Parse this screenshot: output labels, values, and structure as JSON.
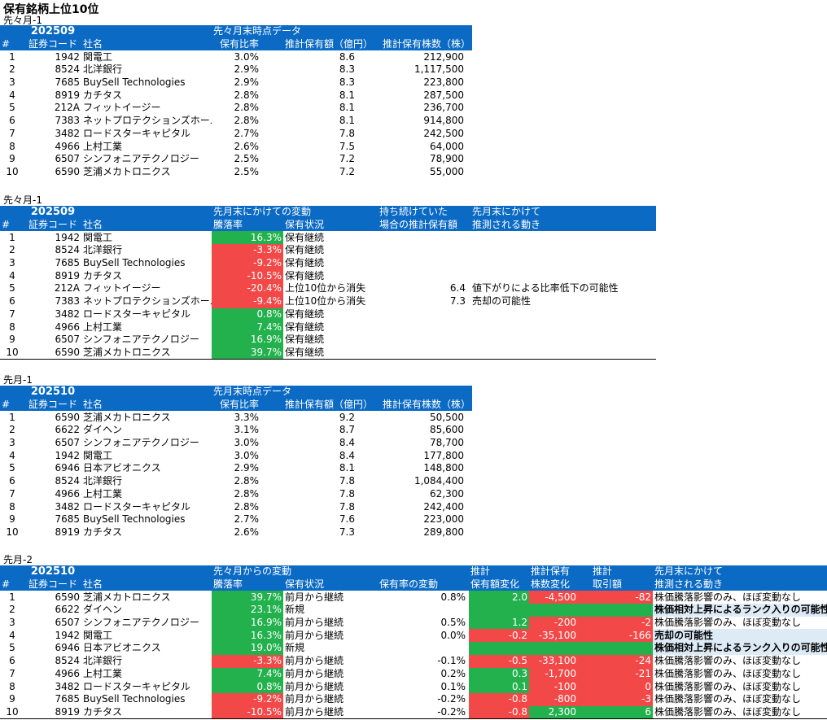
{
  "title": "保有銘柄上位10位",
  "colors": {
    "header_bg": "#0B6AC4",
    "up": "#22B14C",
    "down": "#F24848",
    "note_bg": "#DDEBF7"
  },
  "section1": {
    "label": "先々月-1",
    "period": "202509",
    "group": "先々月末時点データ",
    "headers": {
      "num": "#",
      "code": "証券コード",
      "name": "社名",
      "ratio": "保有比率",
      "amount": "推計保有額（億円）",
      "shares": "推計保有株数（株）"
    },
    "rows": [
      {
        "n": "1",
        "code": "1942",
        "name": "関電工",
        "ratio": "3.0%",
        "amount": "8.6",
        "shares": "212,900"
      },
      {
        "n": "2",
        "code": "8524",
        "name": "北洋銀行",
        "ratio": "2.9%",
        "amount": "8.3",
        "shares": "1,117,500"
      },
      {
        "n": "3",
        "code": "7685",
        "name": "BuySell Technologies",
        "ratio": "2.9%",
        "amount": "8.3",
        "shares": "223,800"
      },
      {
        "n": "4",
        "code": "8919",
        "name": "カチタス",
        "ratio": "2.8%",
        "amount": "8.1",
        "shares": "287,500"
      },
      {
        "n": "5",
        "code": "212A",
        "name": "フィットイージー",
        "ratio": "2.8%",
        "amount": "8.1",
        "shares": "236,700"
      },
      {
        "n": "6",
        "code": "7383",
        "name": "ネットプロテクションズホールディ",
        "ratio": "2.8%",
        "amount": "8.1",
        "shares": "914,800"
      },
      {
        "n": "7",
        "code": "3482",
        "name": "ロードスターキャピタル",
        "ratio": "2.7%",
        "amount": "7.8",
        "shares": "242,500"
      },
      {
        "n": "8",
        "code": "4966",
        "name": "上村工業",
        "ratio": "2.6%",
        "amount": "7.5",
        "shares": "64,000"
      },
      {
        "n": "9",
        "code": "6507",
        "name": "シンフォニアテクノロジー",
        "ratio": "2.5%",
        "amount": "7.2",
        "shares": "78,900"
      },
      {
        "n": "10",
        "code": "6590",
        "name": "芝浦メカトロニクス",
        "ratio": "2.5%",
        "amount": "7.2",
        "shares": "55,000"
      }
    ]
  },
  "section2": {
    "label": "先々月-1",
    "period": "202509",
    "group": "先月末にかけての変動",
    "group2": "持ち続けていた",
    "group3": "先月末にかけて",
    "headers": {
      "num": "#",
      "code": "証券コード",
      "name": "社名",
      "rate": "騰落率",
      "status": "保有状況",
      "est": "場合の推計保有額",
      "move": "推測される動き"
    },
    "rows": [
      {
        "n": "1",
        "code": "1942",
        "name": "関電工",
        "rate": "16.3%",
        "dir": "up",
        "status": "保有継続",
        "est": "",
        "move": ""
      },
      {
        "n": "2",
        "code": "8524",
        "name": "北洋銀行",
        "rate": "-3.3%",
        "dir": "down",
        "status": "保有継続",
        "est": "",
        "move": ""
      },
      {
        "n": "3",
        "code": "7685",
        "name": "BuySell Technologies",
        "rate": "-9.2%",
        "dir": "down",
        "status": "保有継続",
        "est": "",
        "move": ""
      },
      {
        "n": "4",
        "code": "8919",
        "name": "カチタス",
        "rate": "-10.5%",
        "dir": "down",
        "status": "保有継続",
        "est": "",
        "move": ""
      },
      {
        "n": "5",
        "code": "212A",
        "name": "フィットイージー",
        "rate": "-20.4%",
        "dir": "down",
        "status": "上位10位から消失",
        "est": "6.4",
        "move": "値下がりによる比率低下の可能性"
      },
      {
        "n": "6",
        "code": "7383",
        "name": "ネットプロテクションズホールディ",
        "rate": "-9.4%",
        "dir": "down",
        "status": "上位10位から消失",
        "est": "7.3",
        "move": "売却の可能性"
      },
      {
        "n": "7",
        "code": "3482",
        "name": "ロードスターキャピタル",
        "rate": "0.8%",
        "dir": "up",
        "status": "保有継続",
        "est": "",
        "move": ""
      },
      {
        "n": "8",
        "code": "4966",
        "name": "上村工業",
        "rate": "7.4%",
        "dir": "up",
        "status": "保有継続",
        "est": "",
        "move": ""
      },
      {
        "n": "9",
        "code": "6507",
        "name": "シンフォニアテクノロジー",
        "rate": "16.9%",
        "dir": "up",
        "status": "保有継続",
        "est": "",
        "move": ""
      },
      {
        "n": "10",
        "code": "6590",
        "name": "芝浦メカトロニクス",
        "rate": "39.7%",
        "dir": "up",
        "status": "保有継続",
        "est": "",
        "move": ""
      }
    ]
  },
  "section3": {
    "label": "先月-1",
    "period": "202510",
    "group": "先月末時点データ",
    "headers": {
      "num": "#",
      "code": "証券コード",
      "name": "社名",
      "ratio": "保有比率",
      "amount": "推計保有額（億円）",
      "shares": "推計保有株数（株）"
    },
    "rows": [
      {
        "n": "1",
        "code": "6590",
        "name": "芝浦メカトロニクス",
        "ratio": "3.3%",
        "amount": "9.2",
        "shares": "50,500"
      },
      {
        "n": "2",
        "code": "6622",
        "name": "ダイヘン",
        "ratio": "3.1%",
        "amount": "8.7",
        "shares": "85,600"
      },
      {
        "n": "3",
        "code": "6507",
        "name": "シンフォニアテクノロジー",
        "ratio": "3.0%",
        "amount": "8.4",
        "shares": "78,700"
      },
      {
        "n": "4",
        "code": "1942",
        "name": "関電工",
        "ratio": "3.0%",
        "amount": "8.4",
        "shares": "177,800"
      },
      {
        "n": "5",
        "code": "6946",
        "name": "日本アビオニクス",
        "ratio": "2.9%",
        "amount": "8.1",
        "shares": "148,800"
      },
      {
        "n": "6",
        "code": "8524",
        "name": "北洋銀行",
        "ratio": "2.8%",
        "amount": "7.8",
        "shares": "1,084,400"
      },
      {
        "n": "7",
        "code": "4966",
        "name": "上村工業",
        "ratio": "2.8%",
        "amount": "7.8",
        "shares": "62,300"
      },
      {
        "n": "8",
        "code": "3482",
        "name": "ロードスターキャピタル",
        "ratio": "2.8%",
        "amount": "7.8",
        "shares": "242,400"
      },
      {
        "n": "9",
        "code": "7685",
        "name": "BuySell Technologies",
        "ratio": "2.7%",
        "amount": "7.6",
        "shares": "223,000"
      },
      {
        "n": "10",
        "code": "8919",
        "name": "カチタス",
        "ratio": "2.6%",
        "amount": "7.3",
        "shares": "289,800"
      }
    ]
  },
  "section4": {
    "label": "先月-2",
    "period": "202510",
    "group": "先々月からの変動",
    "group_amt": "推計",
    "group_shares": "推計保有",
    "group_trade": "推計",
    "group_move": "先月末にかけて",
    "headers": {
      "num": "#",
      "code": "証券コード",
      "name": "社名",
      "rate": "騰落率",
      "status": "保有状況",
      "ratio_chg": "保有率の変動",
      "amt_chg": "保有額変化",
      "shares_chg": "株数変化",
      "trade": "取引額",
      "move": "推測される動き"
    },
    "rows": [
      {
        "n": "1",
        "code": "6590",
        "name": "芝浦メカトロニクス",
        "rate": "39.7%",
        "rate_dir": "up",
        "status": "前月から継続",
        "ratio_chg": "0.8%",
        "amt_chg": "2.0",
        "amt_dir": "up",
        "shares_chg": "-4,500",
        "shares_dir": "down",
        "trade": "-82",
        "trade_dir": "down",
        "move": "株価騰落影響のみ、ほぼ変動なし",
        "move_style": "plain"
      },
      {
        "n": "2",
        "code": "6622",
        "name": "ダイヘン",
        "rate": "23.1%",
        "rate_dir": "up",
        "status": "新規",
        "ratio_chg": "",
        "amt_chg": "",
        "amt_dir": "up",
        "shares_chg": "",
        "shares_dir": "up",
        "trade": "",
        "trade_dir": "up",
        "move": "株価相対上昇によるランク入りの可能性",
        "move_style": "note"
      },
      {
        "n": "3",
        "code": "6507",
        "name": "シンフォニアテクノロジー",
        "rate": "16.9%",
        "rate_dir": "up",
        "status": "前月から継続",
        "ratio_chg": "0.5%",
        "amt_chg": "1.2",
        "amt_dir": "up",
        "shares_chg": "-200",
        "shares_dir": "down",
        "trade": "-2",
        "trade_dir": "down",
        "move": "株価騰落影響のみ、ほぼ変動なし",
        "move_style": "plain"
      },
      {
        "n": "4",
        "code": "1942",
        "name": "関電工",
        "rate": "16.3%",
        "rate_dir": "up",
        "status": "前月から継続",
        "ratio_chg": "0.0%",
        "amt_chg": "-0.2",
        "amt_dir": "down",
        "shares_chg": "-35,100",
        "shares_dir": "down",
        "trade": "-166",
        "trade_dir": "down",
        "move": "売却の可能性",
        "move_style": "note"
      },
      {
        "n": "5",
        "code": "6946",
        "name": "日本アビオニクス",
        "rate": "19.0%",
        "rate_dir": "up",
        "status": "新規",
        "ratio_chg": "",
        "amt_chg": "",
        "amt_dir": "up",
        "shares_chg": "",
        "shares_dir": "up",
        "trade": "",
        "trade_dir": "up",
        "move": "株価相対上昇によるランク入りの可能性",
        "move_style": "note"
      },
      {
        "n": "6",
        "code": "8524",
        "name": "北洋銀行",
        "rate": "-3.3%",
        "rate_dir": "down",
        "status": "前月から継続",
        "ratio_chg": "-0.1%",
        "amt_chg": "-0.5",
        "amt_dir": "down",
        "shares_chg": "-33,100",
        "shares_dir": "down",
        "trade": "-24",
        "trade_dir": "down",
        "move": "株価騰落影響のみ、ほぼ変動なし",
        "move_style": "plain"
      },
      {
        "n": "7",
        "code": "4966",
        "name": "上村工業",
        "rate": "7.4%",
        "rate_dir": "up",
        "status": "前月から継続",
        "ratio_chg": "0.2%",
        "amt_chg": "0.3",
        "amt_dir": "up",
        "shares_chg": "-1,700",
        "shares_dir": "down",
        "trade": "-21",
        "trade_dir": "down",
        "move": "株価騰落影響のみ、ほぼ変動なし",
        "move_style": "plain"
      },
      {
        "n": "8",
        "code": "3482",
        "name": "ロードスターキャピタル",
        "rate": "0.8%",
        "rate_dir": "up",
        "status": "前月から継続",
        "ratio_chg": "0.1%",
        "amt_chg": "0.1",
        "amt_dir": "up",
        "shares_chg": "-100",
        "shares_dir": "down",
        "trade": "0",
        "trade_dir": "down",
        "move": "株価騰落影響のみ、ほぼ変動なし",
        "move_style": "plain"
      },
      {
        "n": "9",
        "code": "7685",
        "name": "BuySell Technologies",
        "rate": "-9.2%",
        "rate_dir": "down",
        "status": "前月から継続",
        "ratio_chg": "-0.2%",
        "amt_chg": "-0.8",
        "amt_dir": "down",
        "shares_chg": "-800",
        "shares_dir": "down",
        "trade": "-3",
        "trade_dir": "down",
        "move": "株価騰落影響のみ、ほぼ変動なし",
        "move_style": "plain"
      },
      {
        "n": "10",
        "code": "8919",
        "name": "カチタス",
        "rate": "-10.5%",
        "rate_dir": "down",
        "status": "前月から継続",
        "ratio_chg": "-0.2%",
        "amt_chg": "-0.8",
        "amt_dir": "down",
        "shares_chg": "2,300",
        "shares_dir": "up",
        "trade": "6",
        "trade_dir": "up",
        "move": "株価騰落影響のみ、ほぼ変動なし",
        "move_style": "plain"
      }
    ]
  }
}
